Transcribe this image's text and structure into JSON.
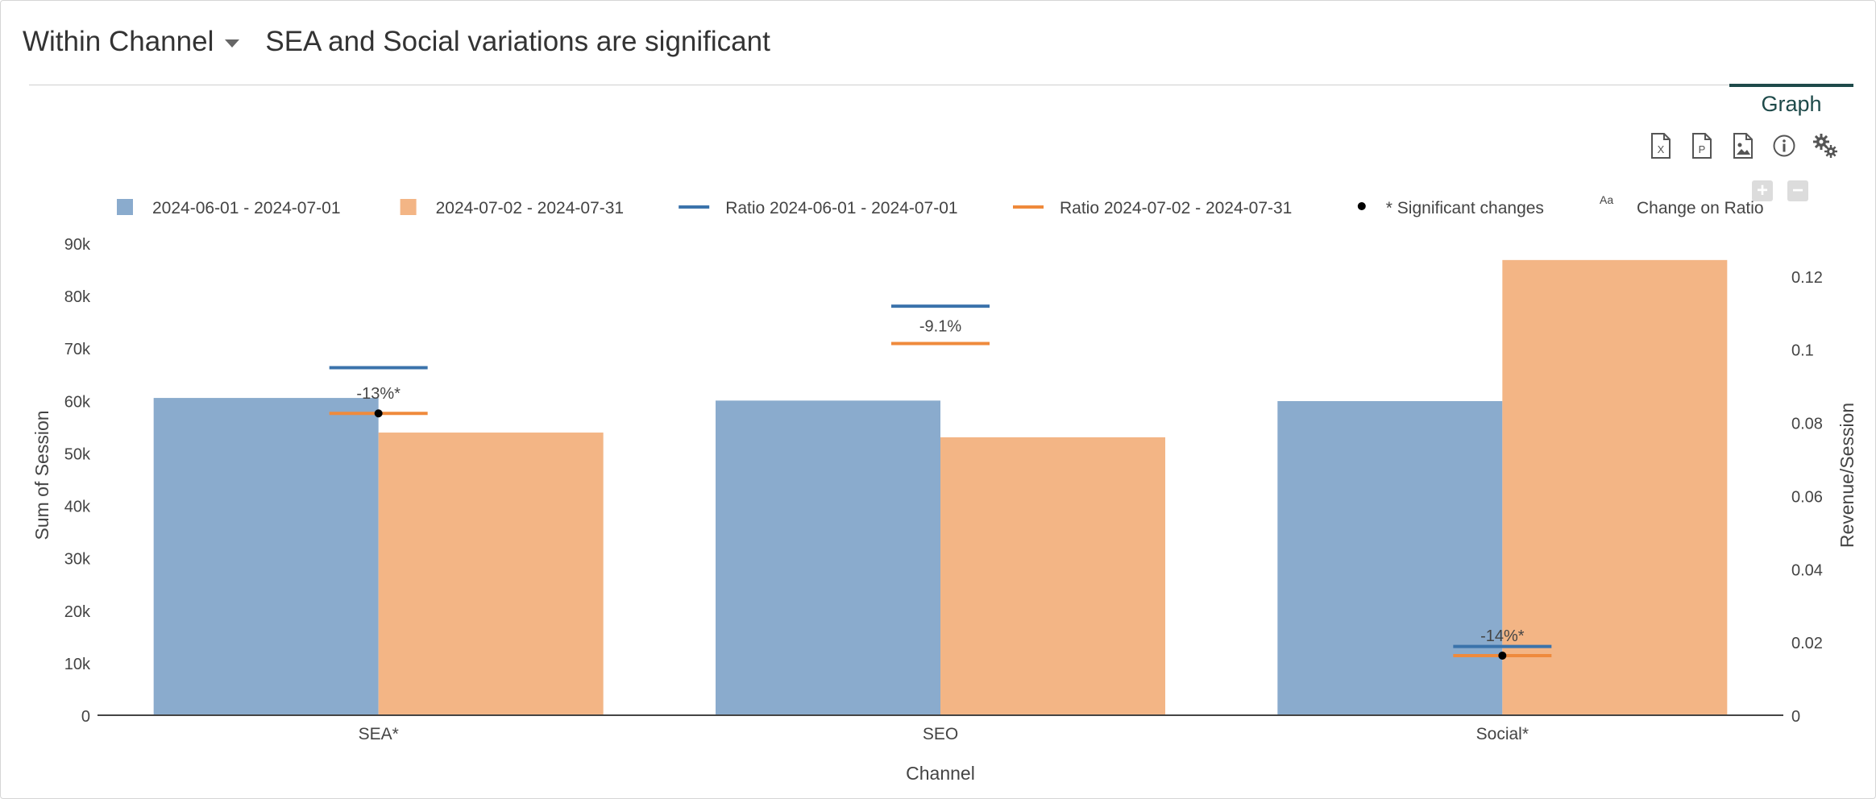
{
  "header": {
    "dropdown_label": "Within Channel",
    "headline": "SEA and Social variations are significant"
  },
  "tabs": [
    {
      "label": "Graph",
      "active": true
    }
  ],
  "toolbar": {
    "icons": [
      "excel-export-icon",
      "pdf-export-icon",
      "image-export-icon",
      "info-icon",
      "settings-icon"
    ]
  },
  "zoom": {
    "plus": "+",
    "minus": "−"
  },
  "chart_data": {
    "type": "bar",
    "categories": [
      "SEA*",
      "SEO",
      "Social*"
    ],
    "xlabel": "Channel",
    "ylabel": "Sum of Session",
    "y2label": "Revenue/Session",
    "ylim": [
      0,
      90000
    ],
    "y2lim": [
      0,
      0.129
    ],
    "yticks": [
      {
        "value": 0,
        "label": "0"
      },
      {
        "value": 10000,
        "label": "10k"
      },
      {
        "value": 20000,
        "label": "20k"
      },
      {
        "value": 30000,
        "label": "30k"
      },
      {
        "value": 40000,
        "label": "40k"
      },
      {
        "value": 50000,
        "label": "50k"
      },
      {
        "value": 60000,
        "label": "60k"
      },
      {
        "value": 70000,
        "label": "70k"
      },
      {
        "value": 80000,
        "label": "80k"
      },
      {
        "value": 90000,
        "label": "90k"
      }
    ],
    "y2ticks": [
      {
        "value": 0,
        "label": "0"
      },
      {
        "value": 0.02,
        "label": "0.02"
      },
      {
        "value": 0.04,
        "label": "0.04"
      },
      {
        "value": 0.06,
        "label": "0.06"
      },
      {
        "value": 0.08,
        "label": "0.08"
      },
      {
        "value": 0.1,
        "label": "0.1"
      },
      {
        "value": 0.12,
        "label": "0.12"
      }
    ],
    "series": [
      {
        "name": "2024-06-01 - 2024-07-01",
        "kind": "bar",
        "color": "#8aabcd",
        "values": [
          60500,
          60000,
          59900
        ]
      },
      {
        "name": "2024-07-02 - 2024-07-31",
        "kind": "bar",
        "color": "#f3b585",
        "values": [
          53900,
          53000,
          86800
        ]
      }
    ],
    "ratio_series": [
      {
        "name": "Ratio 2024-06-01 - 2024-07-01",
        "color": "#3b73ab",
        "values": [
          0.095,
          0.1118,
          0.0188
        ]
      },
      {
        "name": "Ratio 2024-07-02 - 2024-07-31",
        "color": "#ef8a3c",
        "values": [
          0.0825,
          0.1016,
          0.0163
        ]
      }
    ],
    "change_labels": [
      "-13%*",
      "-9.1%",
      "-14%*"
    ],
    "significant": [
      true,
      false,
      true
    ],
    "legend": {
      "placement": "top",
      "significant_label": "* Significant changes",
      "change_symbol": "Aa",
      "change_label": "Change on Ratio"
    }
  }
}
